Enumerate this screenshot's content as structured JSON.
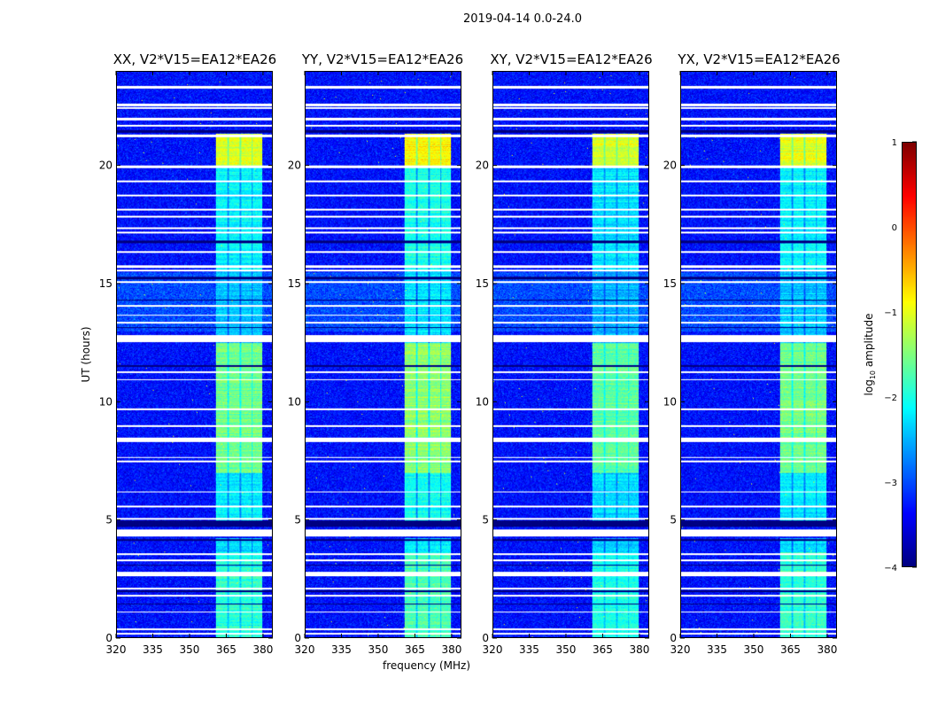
{
  "chart_data": {
    "type": "heatmap",
    "title": "2019-04-14 0.0-24.0",
    "xlabel": "frequency (MHz)",
    "ylabel": "UT (hours)",
    "xlim": [
      320,
      384
    ],
    "ylim": [
      0,
      24
    ],
    "xticks": [
      "320",
      "335",
      "350",
      "365",
      "380"
    ],
    "yticks": [
      "0",
      "5",
      "10",
      "15",
      "20"
    ],
    "panels": [
      {
        "title": "XX, V2*V15=EA12*EA26",
        "band_boost": 0.0
      },
      {
        "title": "YY, V2*V15=EA12*EA26",
        "band_boost": 0.15
      },
      {
        "title": "XY, V2*V15=EA12*EA26",
        "band_boost": -0.1
      },
      {
        "title": "YX, V2*V15=EA12*EA26",
        "band_boost": 0.0
      }
    ],
    "colorbar": {
      "label_main": "log",
      "label_sub": "10",
      "label_rest": " amplitude",
      "range": [
        -4,
        1
      ],
      "ticks": [
        "1",
        "0",
        "−1",
        "−2",
        "−3",
        "−4"
      ],
      "colormap": "jet"
    },
    "background_log_amp": -3.3,
    "band_mhz": [
      [
        360.5,
        365.5
      ],
      [
        366,
        370.5
      ],
      [
        371,
        375.5
      ],
      [
        376,
        380
      ]
    ],
    "band_levels": [
      {
        "hours": [
          0,
          3.6
        ],
        "value": -1.9
      },
      {
        "hours": [
          3.6,
          4.2
        ],
        "value": -2.3
      },
      {
        "hours": [
          4.8,
          7.0
        ],
        "value": -2.2
      },
      {
        "hours": [
          7.0,
          12.5
        ],
        "value": -1.55
      },
      {
        "hours": [
          12.5,
          15.6
        ],
        "value": -2.4
      },
      {
        "hours": [
          15.6,
          20.0
        ],
        "value": -2.15
      },
      {
        "hours": [
          20.0,
          21.4
        ],
        "value": -1.0
      }
    ],
    "flagged_hours": [
      [
        23.3,
        23.4
      ],
      [
        22.55,
        22.65
      ],
      [
        22.45,
        22.5
      ],
      [
        21.95,
        22.05
      ],
      [
        21.7,
        21.78
      ],
      [
        21.25,
        21.35
      ],
      [
        19.95,
        20.05
      ],
      [
        19.35,
        19.42
      ],
      [
        18.75,
        18.82
      ],
      [
        18.15,
        18.22
      ],
      [
        17.85,
        17.92
      ],
      [
        17.35,
        17.42
      ],
      [
        17.15,
        17.22
      ],
      [
        16.35,
        16.42
      ],
      [
        15.7,
        15.8
      ],
      [
        15.55,
        15.62
      ],
      [
        15.05,
        15.12
      ],
      [
        14.05,
        14.12
      ],
      [
        13.65,
        13.72
      ],
      [
        13.35,
        13.42
      ],
      [
        12.55,
        12.85
      ],
      [
        11.25,
        11.32
      ],
      [
        10.92,
        10.98
      ],
      [
        9.65,
        9.72
      ],
      [
        8.95,
        9.02
      ],
      [
        8.3,
        8.5
      ],
      [
        7.62,
        7.68
      ],
      [
        7.45,
        7.52
      ],
      [
        6.15,
        6.22
      ],
      [
        5.55,
        5.62
      ],
      [
        5.0,
        5.07
      ],
      [
        4.3,
        4.6
      ],
      [
        3.52,
        3.58
      ],
      [
        3.25,
        3.32
      ],
      [
        2.6,
        2.8
      ],
      [
        2.05,
        2.12
      ],
      [
        1.75,
        1.82
      ],
      [
        1.05,
        1.12
      ],
      [
        0.32,
        0.38
      ],
      [
        0.15,
        0.22
      ]
    ],
    "dark_hours": [
      [
        4.7,
        4.95
      ],
      [
        21.45,
        21.55
      ],
      [
        16.75,
        16.85
      ],
      [
        15.2,
        15.3
      ],
      [
        14.3,
        14.35
      ],
      [
        13.15,
        13.2
      ],
      [
        11.5,
        11.55
      ],
      [
        4.12,
        4.18
      ],
      [
        3.05,
        3.1
      ],
      [
        1.95,
        2.0
      ],
      [
        1.4,
        1.45
      ]
    ]
  }
}
